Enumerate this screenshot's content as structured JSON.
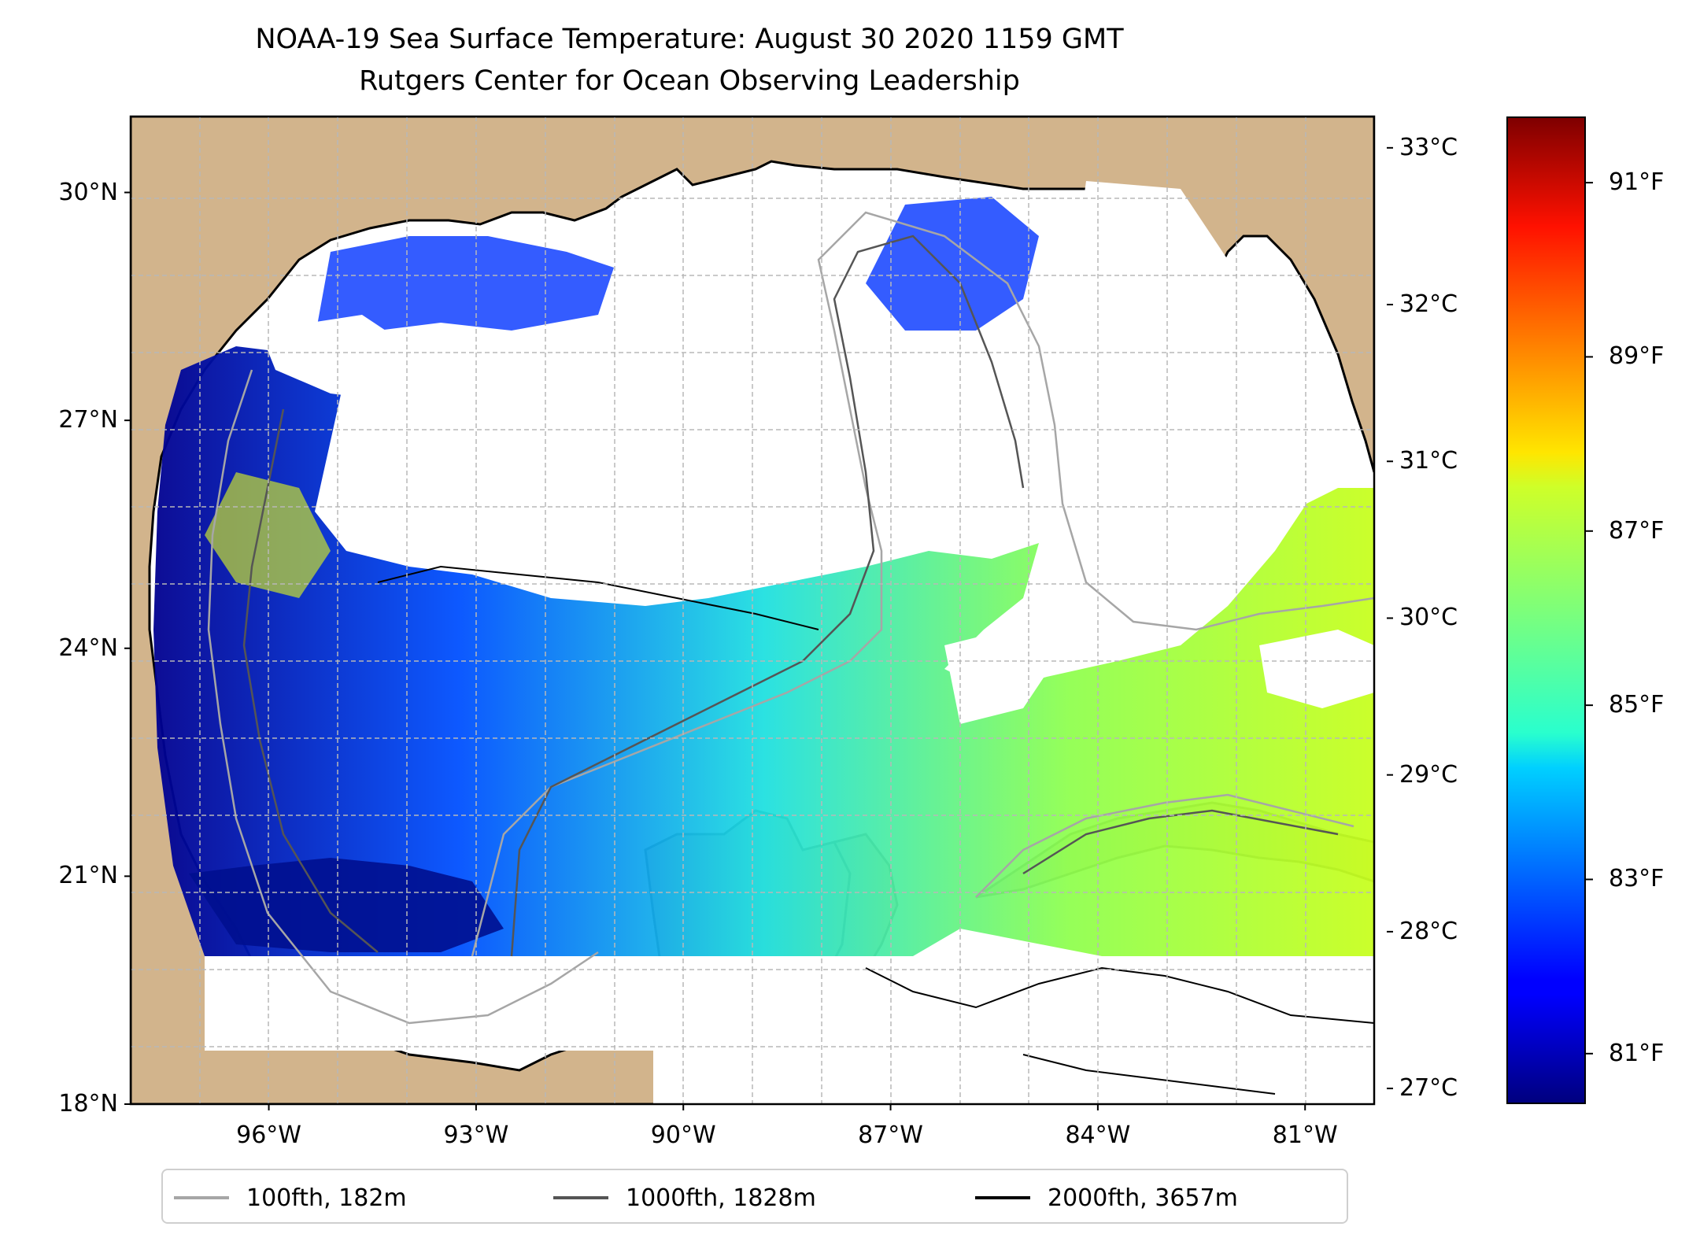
{
  "title": {
    "line1": "NOAA-19 Sea Surface Temperature: August 30 2020 1159 GMT",
    "line2": "Rutgers Center for Ocean Observing Leadership"
  },
  "map": {
    "lon_range": [
      -98.0,
      -80.0
    ],
    "lat_range": [
      18.0,
      31.0
    ],
    "lat_ticks": [
      {
        "lat": 30,
        "label": "30°N"
      },
      {
        "lat": 27,
        "label": "27°N"
      },
      {
        "lat": 24,
        "label": "24°N"
      },
      {
        "lat": 21,
        "label": "21°N"
      },
      {
        "lat": 18,
        "label": "18°N"
      }
    ],
    "lon_ticks": [
      {
        "lon": -96,
        "label": "96°W"
      },
      {
        "lon": -93,
        "label": "93°W"
      },
      {
        "lon": -90,
        "label": "90°W"
      },
      {
        "lon": -87,
        "label": "87°W"
      },
      {
        "lon": -84,
        "label": "84°W"
      },
      {
        "lon": -81,
        "label": "81°W"
      }
    ],
    "gridlines": true,
    "land_color": "#d2b48c",
    "coast_color": "#000000"
  },
  "legend": {
    "placement": "bottom-center",
    "items": [
      {
        "label": "100fth, 182m",
        "color": "#a6a6a6"
      },
      {
        "label": "1000fth, 1828m",
        "color": "#555555"
      },
      {
        "label": "2000fth, 3657m",
        "color": "#000000"
      }
    ]
  },
  "colorbar": {
    "colormap": "jet",
    "celsius_range": [
      26.9,
      33.2
    ],
    "celsius_ticks": [
      {
        "value": 27,
        "label": "27°C"
      },
      {
        "value": 28,
        "label": "28°C"
      },
      {
        "value": 29,
        "label": "29°C"
      },
      {
        "value": 30,
        "label": "30°C"
      },
      {
        "value": 31,
        "label": "31°C"
      },
      {
        "value": 32,
        "label": "32°C"
      },
      {
        "value": 33,
        "label": "33°C"
      }
    ],
    "fahrenheit_ticks": [
      {
        "value": 81,
        "label": "81°F"
      },
      {
        "value": 83,
        "label": "83°F"
      },
      {
        "value": 85,
        "label": "85°F"
      },
      {
        "value": 87,
        "label": "87°F"
      },
      {
        "value": 89,
        "label": "89°F"
      },
      {
        "value": 91,
        "label": "91°F"
      }
    ]
  }
}
